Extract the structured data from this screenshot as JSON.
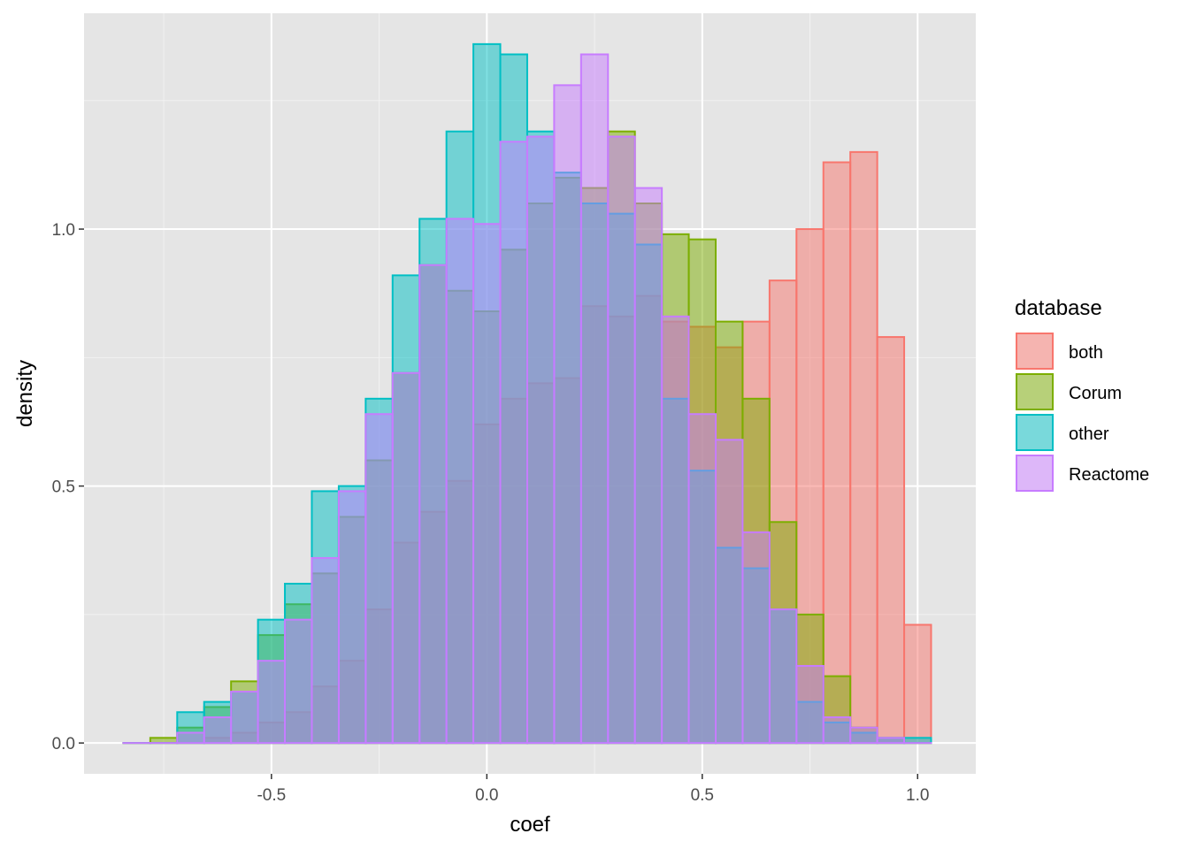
{
  "chart_data": {
    "type": "bar",
    "subtype": "overlapping-histogram",
    "xlabel": "coef",
    "ylabel": "density",
    "xlim": [
      -0.935,
      1.135
    ],
    "ylim": [
      -0.06,
      1.42
    ],
    "xticks": [
      -0.5,
      0.0,
      0.5,
      1.0
    ],
    "xtick_labels": [
      "-0.5",
      "0.0",
      "0.5",
      "1.0"
    ],
    "yticks": [
      0.0,
      0.5,
      1.0
    ],
    "ytick_labels": [
      "0.0",
      "0.5",
      "1.0"
    ],
    "grid": true,
    "background": "#E5E5E5",
    "legend": {
      "title": "database",
      "position": "right"
    },
    "bin_width": 0.0625,
    "bin_centers": [
      -0.8125,
      -0.75,
      -0.6875,
      -0.625,
      -0.5625,
      -0.5,
      -0.4375,
      -0.375,
      -0.3125,
      -0.25,
      -0.1875,
      -0.125,
      -0.0625,
      0.0,
      0.0625,
      0.125,
      0.1875,
      0.25,
      0.3125,
      0.375,
      0.4375,
      0.5,
      0.5625,
      0.625,
      0.6875,
      0.75,
      0.8125,
      0.875,
      0.9375,
      1.0
    ],
    "series": [
      {
        "name": "both",
        "color": "#F8766D",
        "values": [
          0,
          0,
          0,
          0.01,
          0.02,
          0.04,
          0.06,
          0.11,
          0.16,
          0.26,
          0.39,
          0.45,
          0.51,
          0.62,
          0.67,
          0.7,
          0.71,
          0.85,
          0.83,
          0.87,
          0.82,
          0.81,
          0.77,
          0.82,
          0.9,
          1.0,
          1.13,
          1.15,
          0.79,
          0.23
        ]
      },
      {
        "name": "Corum",
        "color": "#7CAE00",
        "values": [
          0,
          0.01,
          0.03,
          0.07,
          0.12,
          0.21,
          0.27,
          0.33,
          0.44,
          0.55,
          0.72,
          0.93,
          0.88,
          0.84,
          0.96,
          1.05,
          1.1,
          1.08,
          1.19,
          1.05,
          0.99,
          0.98,
          0.82,
          0.67,
          0.43,
          0.25,
          0.13,
          0.03,
          0.01,
          0
        ]
      },
      {
        "name": "other",
        "color": "#00BFC4",
        "values": [
          0,
          0,
          0.06,
          0.08,
          0.1,
          0.24,
          0.31,
          0.49,
          0.5,
          0.67,
          0.91,
          1.02,
          1.19,
          1.36,
          1.34,
          1.19,
          1.11,
          1.05,
          1.03,
          0.97,
          0.67,
          0.53,
          0.38,
          0.34,
          0.26,
          0.08,
          0.04,
          0.02,
          0.01,
          0.01
        ]
      },
      {
        "name": "Reactome",
        "color": "#C77CFF",
        "values": [
          0,
          0,
          0.02,
          0.05,
          0.1,
          0.16,
          0.24,
          0.36,
          0.49,
          0.64,
          0.72,
          0.93,
          1.02,
          1.01,
          1.17,
          1.18,
          1.28,
          1.34,
          1.18,
          1.08,
          0.83,
          0.64,
          0.59,
          0.41,
          0.26,
          0.15,
          0.05,
          0.03,
          0.01,
          0
        ]
      }
    ]
  }
}
